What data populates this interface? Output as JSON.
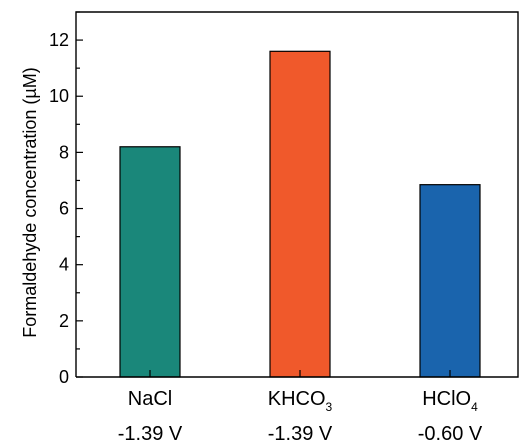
{
  "chart_data": {
    "type": "bar",
    "ylabel": "Formaldehyde concentration (µM)",
    "ylim": [
      0,
      13
    ],
    "yticks": [
      "0",
      "2",
      "4",
      "6",
      "8",
      "10",
      "12"
    ],
    "categories": [
      {
        "name": "NaCl",
        "sub": "",
        "voltage": "-1.39 V",
        "value": 8.2,
        "color": "#1a877a"
      },
      {
        "name": "KHCO",
        "sub": "3",
        "voltage": "-1.39 V",
        "value": 11.6,
        "color": "#f0592b"
      },
      {
        "name": "HClO",
        "sub": "4",
        "voltage": "-0.60 V",
        "value": 6.85,
        "color": "#1a64ad"
      }
    ],
    "grid": false,
    "legend": "none"
  }
}
